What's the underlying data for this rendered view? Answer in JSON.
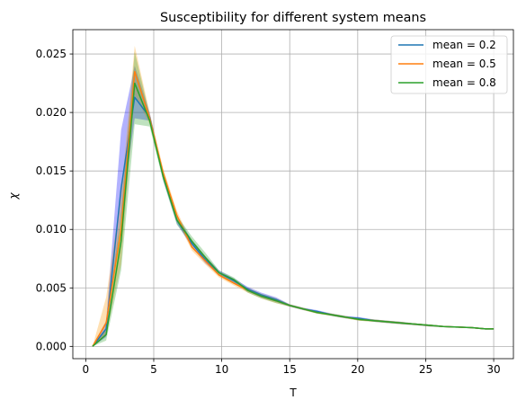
{
  "chart_data": {
    "type": "line",
    "title": "Susceptibility for different system means",
    "xlabel": "T",
    "ylabel": "χ",
    "xlim": [
      -0.95,
      31.45
    ],
    "ylim": [
      -0.00105,
      0.02708
    ],
    "xticks": [
      0,
      5,
      10,
      15,
      20,
      25,
      30
    ],
    "xtick_labels": [
      "0",
      "5",
      "10",
      "15",
      "20",
      "25",
      "30"
    ],
    "yticks": [
      0.0,
      0.005,
      0.01,
      0.015,
      0.02,
      0.025
    ],
    "ytick_labels": [
      "0.000",
      "0.005",
      "0.010",
      "0.015",
      "0.020",
      "0.025"
    ],
    "grid": true,
    "legend_position": "top-right",
    "x": [
      0.5,
      1.5,
      2.6,
      3.6,
      4.7,
      5.7,
      6.7,
      7.8,
      8.8,
      9.8,
      10.9,
      11.9,
      12.9,
      14.0,
      15.0,
      16.0,
      17.0,
      18.1,
      19.1,
      20.1,
      21.2,
      22.2,
      23.2,
      24.3,
      25.3,
      26.3,
      27.4,
      28.4,
      29.4,
      30.0
    ],
    "series": [
      {
        "name": "mean = 0.2",
        "color": "#1f77b4",
        "values": [
          0.0,
          0.0015,
          0.0135,
          0.0213,
          0.0196,
          0.0145,
          0.0108,
          0.0088,
          0.0074,
          0.0063,
          0.0056,
          0.0049,
          0.0044,
          0.004,
          0.0035,
          0.0032,
          0.003,
          0.0027,
          0.0025,
          0.0024,
          0.0022,
          0.0021,
          0.002,
          0.0019,
          0.0018,
          0.0017,
          0.00165,
          0.0016,
          0.0015,
          0.0015
        ],
        "lower": [
          0.0,
          0.0008,
          0.011,
          0.0195,
          0.0193,
          0.0142,
          0.0105,
          0.0085,
          0.0071,
          0.0061,
          0.0054,
          0.0047,
          0.0042,
          0.0038,
          0.0034,
          0.0031,
          0.0029,
          0.0026,
          0.0024,
          0.0023,
          0.0021,
          0.002,
          0.0019,
          0.0018,
          0.0017,
          0.00165,
          0.0016,
          0.00155,
          0.00145,
          0.00145
        ],
        "upper": [
          0.0,
          0.0022,
          0.0185,
          0.024,
          0.02,
          0.0148,
          0.0112,
          0.0091,
          0.0077,
          0.0065,
          0.0058,
          0.0051,
          0.0046,
          0.0042,
          0.0036,
          0.0033,
          0.0031,
          0.0028,
          0.0026,
          0.0025,
          0.0023,
          0.0022,
          0.0021,
          0.00195,
          0.00185,
          0.00175,
          0.0017,
          0.00165,
          0.00155,
          0.00155
        ]
      },
      {
        "name": "mean = 0.5",
        "color": "#ff7f0e",
        "values": [
          0.0,
          0.002,
          0.01,
          0.0235,
          0.0195,
          0.0148,
          0.0112,
          0.0085,
          0.0073,
          0.0061,
          0.0054,
          0.0048,
          0.0043,
          0.0039,
          0.0035,
          0.0032,
          0.0029,
          0.0027,
          0.0025,
          0.0023,
          0.0022,
          0.0021,
          0.002,
          0.0019,
          0.0018,
          0.0017,
          0.00165,
          0.0016,
          0.0015,
          0.0015
        ],
        "lower": [
          0.0,
          0.001,
          0.007,
          0.0215,
          0.019,
          0.0145,
          0.0108,
          0.0082,
          0.007,
          0.0059,
          0.0052,
          0.0046,
          0.0041,
          0.0037,
          0.0034,
          0.0031,
          0.0028,
          0.0026,
          0.0024,
          0.0022,
          0.0021,
          0.002,
          0.0019,
          0.0018,
          0.0017,
          0.00165,
          0.0016,
          0.00155,
          0.00145,
          0.00145
        ],
        "upper": [
          0.0,
          0.0042,
          0.013,
          0.0257,
          0.02,
          0.0152,
          0.0116,
          0.0088,
          0.0076,
          0.0063,
          0.0056,
          0.005,
          0.0045,
          0.0041,
          0.0036,
          0.0033,
          0.003,
          0.0028,
          0.0026,
          0.0024,
          0.0023,
          0.0022,
          0.0021,
          0.00195,
          0.00185,
          0.00175,
          0.0017,
          0.00165,
          0.00155,
          0.00155
        ]
      },
      {
        "name": "mean = 0.8",
        "color": "#2ca02c",
        "values": [
          0.0,
          0.001,
          0.009,
          0.0225,
          0.0193,
          0.0145,
          0.0108,
          0.009,
          0.0076,
          0.0063,
          0.0057,
          0.0048,
          0.0043,
          0.0039,
          0.0035,
          0.0032,
          0.0029,
          0.0027,
          0.0025,
          0.0023,
          0.0022,
          0.0021,
          0.002,
          0.0019,
          0.0018,
          0.0017,
          0.00165,
          0.0016,
          0.0015,
          0.0015
        ],
        "lower": [
          0.0,
          0.0005,
          0.0065,
          0.019,
          0.0188,
          0.0141,
          0.0104,
          0.0087,
          0.0073,
          0.0061,
          0.0055,
          0.0046,
          0.0041,
          0.0037,
          0.0034,
          0.0031,
          0.0028,
          0.0026,
          0.0024,
          0.0022,
          0.0021,
          0.002,
          0.0019,
          0.0018,
          0.0017,
          0.00165,
          0.0016,
          0.00155,
          0.00145,
          0.00145
        ],
        "upper": [
          0.0,
          0.0016,
          0.0115,
          0.0252,
          0.0198,
          0.0149,
          0.0112,
          0.0094,
          0.008,
          0.0065,
          0.0059,
          0.005,
          0.0045,
          0.0041,
          0.0036,
          0.0033,
          0.003,
          0.0028,
          0.0026,
          0.0024,
          0.0023,
          0.0022,
          0.0021,
          0.00195,
          0.00185,
          0.00175,
          0.0017,
          0.00165,
          0.00155,
          0.00155
        ]
      }
    ],
    "band_colors": [
      "#0000ff",
      "#ff9900",
      "#2ca02c"
    ]
  }
}
